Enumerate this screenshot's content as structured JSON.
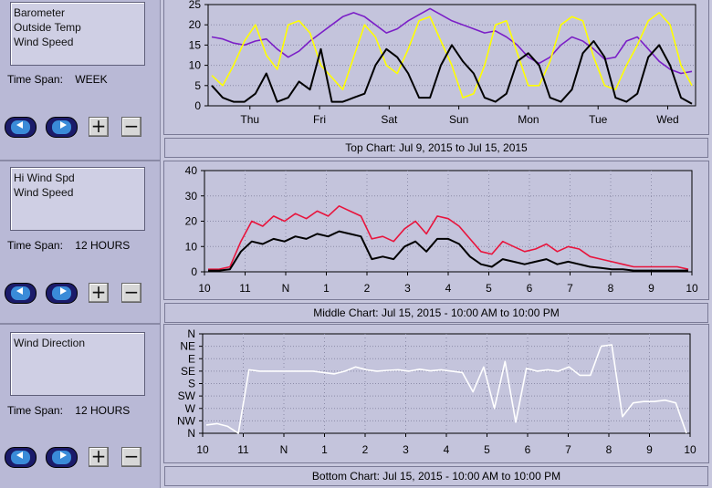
{
  "panels": [
    {
      "legend": [
        "Barometer",
        "Outside Temp",
        "Wind Speed"
      ],
      "time_span_label": "Time Span:",
      "time_span_value": "WEEK",
      "caption": "Top Chart:  Jul 9, 2015  to  Jul 15, 2015"
    },
    {
      "legend": [
        "Hi Wind Spd",
        "Wind Speed"
      ],
      "time_span_label": "Time Span:",
      "time_span_value": "12 HOURS",
      "caption": "Middle Chart:  Jul 15, 2015 - 10:00 AM  to  10:00 PM"
    },
    {
      "legend": [
        "Wind Direction"
      ],
      "time_span_label": "Time Span:",
      "time_span_value": "12 HOURS",
      "caption": "Bottom Chart:  Jul 15, 2015 - 10:00 AM  to  10:00 PM"
    }
  ],
  "buttons": {
    "zoom_in": "+",
    "zoom_out": "−"
  },
  "colors": {
    "barometer": "#7b1fc7",
    "outside_temp": "#ffff00",
    "wind_speed": "#000000",
    "hi_wind_spd": "#e8143c",
    "wind_direction": "#ffffff",
    "plot_bg": "#c4c4dc"
  },
  "chart_data": [
    {
      "type": "line",
      "y_ticks": [
        "0",
        "5",
        "10",
        "15",
        "20",
        "25"
      ],
      "ylim": [
        0,
        25
      ],
      "x_ticks": [
        "Thu",
        "Fri",
        "Sat",
        "Sun",
        "Mon",
        "Tue",
        "Wed"
      ],
      "series": [
        {
          "name": "Barometer",
          "color": "#7b1fc7",
          "values": [
            17,
            16.5,
            15.5,
            15,
            16,
            16.5,
            14,
            12,
            13.5,
            16,
            18,
            20,
            22,
            23,
            22,
            20,
            18,
            19,
            21,
            22.5,
            24,
            22.5,
            21,
            20,
            19,
            18,
            18.5,
            17,
            15,
            12,
            10.5,
            12,
            15,
            17,
            16,
            14,
            11.5,
            12,
            16,
            17,
            14,
            11,
            9,
            8,
            8.5
          ]
        },
        {
          "name": "Outside Temp",
          "color": "#ffff00",
          "values": [
            7.5,
            5,
            10,
            16,
            20,
            12.5,
            9,
            20,
            21,
            18,
            10,
            7,
            4,
            12,
            20,
            17,
            10,
            8,
            14,
            21,
            22,
            16,
            10,
            2,
            3,
            10,
            20,
            21,
            13,
            5,
            5,
            11,
            20,
            22,
            21,
            12,
            5,
            4,
            10,
            15,
            21,
            23,
            20,
            10,
            5
          ]
        },
        {
          "name": "Wind Speed",
          "color": "#000000",
          "values": [
            5,
            2,
            1,
            1,
            3,
            8,
            1,
            2,
            6,
            4,
            14,
            1,
            1,
            2,
            3,
            10,
            14,
            12,
            8,
            2,
            2,
            10,
            15,
            11,
            8,
            2,
            1,
            3,
            11,
            13,
            10,
            2,
            1,
            4,
            13,
            16,
            12,
            2,
            1,
            3,
            12,
            15,
            10,
            2,
            0.5
          ]
        }
      ]
    },
    {
      "type": "line",
      "y_ticks": [
        "0",
        "10",
        "20",
        "30",
        "40"
      ],
      "ylim": [
        0,
        40
      ],
      "x_ticks": [
        "10",
        "11",
        "N",
        "1",
        "2",
        "3",
        "4",
        "5",
        "6",
        "7",
        "8",
        "9",
        "10"
      ],
      "series": [
        {
          "name": "Hi Wind Spd",
          "color": "#e8143c",
          "values": [
            1,
            1,
            2,
            12,
            20,
            18,
            22,
            20,
            23,
            21,
            24,
            22,
            26,
            24,
            22,
            13,
            14,
            12,
            17,
            20,
            15,
            22,
            21,
            18,
            13,
            8,
            7,
            12,
            10,
            8,
            9,
            11,
            8,
            10,
            9,
            6,
            5,
            4,
            3,
            2,
            2,
            2,
            2,
            2,
            1
          ]
        },
        {
          "name": "Wind Speed",
          "color": "#000000",
          "values": [
            0.5,
            0.5,
            1,
            8,
            12,
            11,
            13,
            12,
            14,
            13,
            15,
            14,
            16,
            15,
            14,
            5,
            6,
            5,
            10,
            12,
            8,
            13,
            13,
            11,
            6,
            3,
            2,
            5,
            4,
            3,
            4,
            5,
            3,
            4,
            3,
            2,
            1.5,
            1,
            1,
            0.5,
            0.5,
            0.5,
            0.5,
            0.5,
            0.5
          ]
        }
      ]
    },
    {
      "type": "line",
      "y_ticks": [
        "N",
        "NW",
        "W",
        "SW",
        "S",
        "SE",
        "E",
        "NE",
        "N"
      ],
      "ylim": [
        0,
        360
      ],
      "x_ticks": [
        "10",
        "11",
        "N",
        "1",
        "2",
        "3",
        "4",
        "5",
        "6",
        "7",
        "8",
        "9",
        "10"
      ],
      "series": [
        {
          "name": "Wind Direction",
          "color": "#ffffff",
          "values": [
            30,
            35,
            25,
            0,
            230,
            225,
            225,
            225,
            225,
            225,
            225,
            220,
            215,
            225,
            240,
            230,
            225,
            228,
            230,
            225,
            232,
            226,
            230,
            225,
            220,
            150,
            240,
            90,
            260,
            40,
            235,
            225,
            230,
            225,
            240,
            210,
            210,
            315,
            320,
            60,
            110,
            115,
            115,
            120,
            110,
            0
          ]
        }
      ]
    }
  ]
}
